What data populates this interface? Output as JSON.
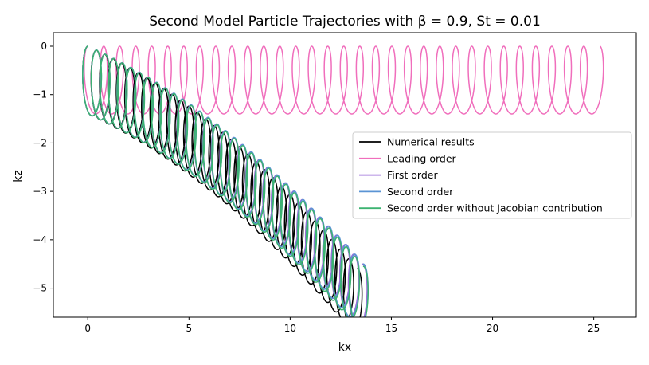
{
  "chart_data": {
    "type": "line",
    "title": "Second Model Particle Trajectories with β = 0.9, St = 0.01",
    "xlabel": "kx",
    "ylabel": "kz",
    "xlim": [
      -1.7,
      27.1
    ],
    "ylim": [
      -5.6,
      0.28
    ],
    "xticks": [
      0,
      5,
      10,
      15,
      20,
      25
    ],
    "yticks": [
      0,
      -1,
      -2,
      -3,
      -4,
      -5
    ],
    "grid": false,
    "legend_position": "center-right",
    "series": [
      {
        "name": "Numerical results",
        "color": "#000000",
        "curve": {
          "start": [
            0.0,
            0.0
          ],
          "end": [
            13.3,
            -4.6
          ],
          "loops": 32,
          "radius": 0.35
        }
      },
      {
        "name": "Leading order",
        "color": "#f06ebc",
        "curve": {
          "start": [
            0.0,
            0.0
          ],
          "end": [
            25.3,
            0.0
          ],
          "loops": 32,
          "radius": 0.35
        }
      },
      {
        "name": "First order",
        "color": "#9b6fd8",
        "curve": {
          "start": [
            0.0,
            0.0
          ],
          "end": [
            13.55,
            -4.5
          ],
          "loops": 32,
          "radius": 0.35
        }
      },
      {
        "name": "Second order",
        "color": "#5b94d4",
        "curve": {
          "start": [
            0.0,
            0.0
          ],
          "end": [
            13.6,
            -4.5
          ],
          "loops": 32,
          "radius": 0.35
        }
      },
      {
        "name": "Second order without Jacobian contribution",
        "color": "#3cb371",
        "curve": {
          "start": [
            0.0,
            0.0
          ],
          "end": [
            13.6,
            -4.55
          ],
          "loops": 32,
          "radius": 0.35
        }
      }
    ]
  }
}
